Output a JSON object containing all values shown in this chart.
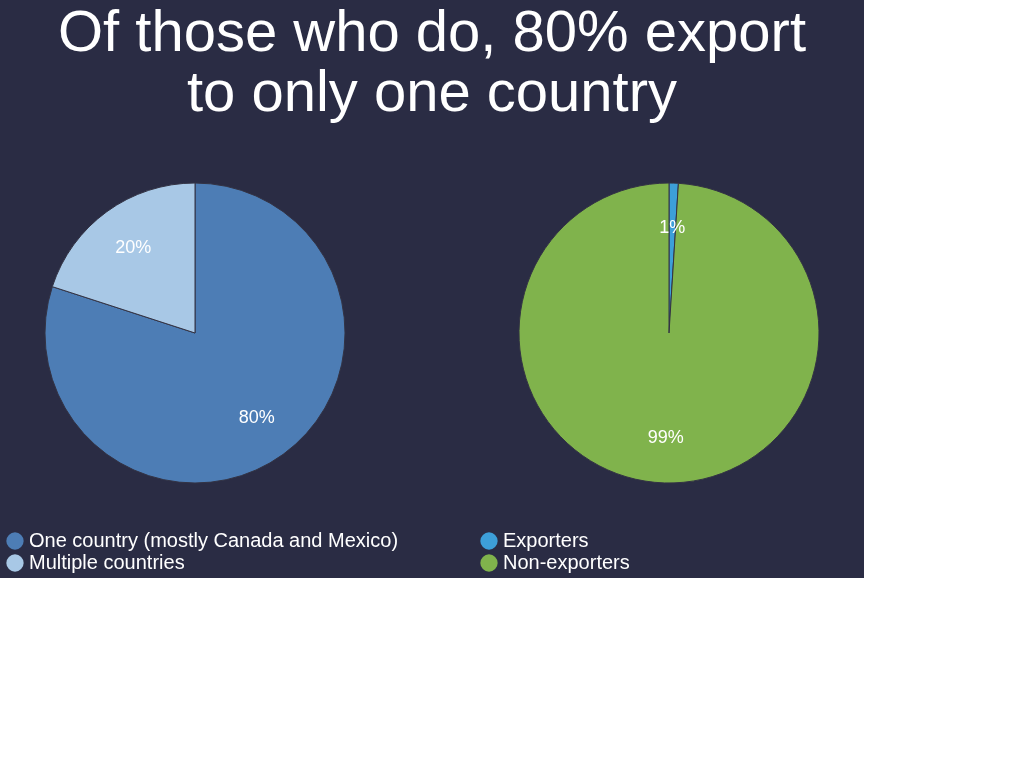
{
  "chart_data": [
    {
      "type": "pie",
      "title": "Of those who do, 80% export to only one country",
      "categories": [
        "One country (mostly Canada and Mexico)",
        "Multiple countries"
      ],
      "values": [
        80,
        20
      ],
      "colors": [
        "#4d7db5",
        "#a8c8e6"
      ],
      "value_labels": [
        "80%",
        "20%"
      ],
      "legend": "bottom"
    },
    {
      "type": "pie",
      "categories": [
        "Exporters",
        "Non-exporters"
      ],
      "values": [
        1,
        99
      ],
      "colors": [
        "#3d9fd9",
        "#80b34c"
      ],
      "value_labels": [
        "1%",
        "99%"
      ],
      "legend": "bottom"
    }
  ]
}
